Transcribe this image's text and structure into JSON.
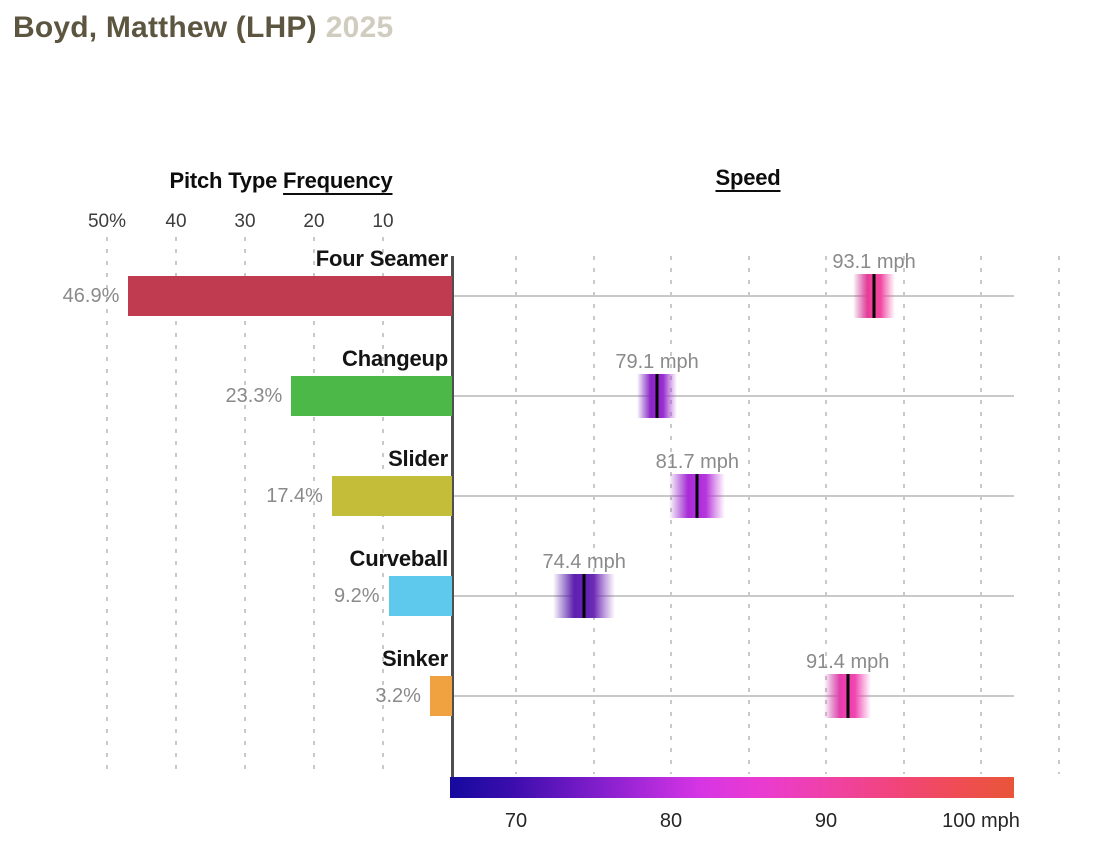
{
  "title": {
    "player": "Boyd, Matthew (LHP)",
    "year": "2025",
    "player_color": "#5c5640",
    "year_color": "#d0ccbf"
  },
  "frequency_chart": {
    "header_prefix": "Pitch Type",
    "header_underlined": "Frequency",
    "ticks": [
      {
        "label": "50%",
        "value": 50
      },
      {
        "label": "40",
        "value": 40
      },
      {
        "label": "30",
        "value": 30
      },
      {
        "label": "20",
        "value": 20
      },
      {
        "label": "10",
        "value": 10
      }
    ],
    "gridline_values": [
      50,
      40,
      30,
      20,
      10
    ]
  },
  "speed_chart": {
    "header": "Speed",
    "ticks": [
      {
        "label": "70",
        "value": 70
      },
      {
        "label": "80",
        "value": 80
      },
      {
        "label": "90",
        "value": 90
      },
      {
        "label": "100 mph",
        "value": 100
      }
    ],
    "gridline_values": [
      70,
      75,
      80,
      85,
      90,
      95,
      100,
      105
    ],
    "colorbar_colors": [
      "#150a9e",
      "#3c0dac",
      "#6f19c4",
      "#a327d8",
      "#d735e4",
      "#ea3bd0",
      "#ef41a8",
      "#f1447f",
      "#f04b58",
      "#e85538"
    ]
  },
  "pitches": [
    {
      "name": "Four Seamer",
      "freq_label": "46.9%",
      "freq_pct": 46.9,
      "bar_color": "#c13b50",
      "speed_label": "93.1 mph",
      "speed_mph": 93.1,
      "speed_color": "#f0419b",
      "spread_mph": 2.7
    },
    {
      "name": "Changeup",
      "freq_label": "23.3%",
      "freq_pct": 23.3,
      "bar_color": "#4cb848",
      "speed_label": "79.1 mph",
      "speed_mph": 79.1,
      "speed_color": "#9127cd",
      "spread_mph": 2.6
    },
    {
      "name": "Slider",
      "freq_label": "17.4%",
      "freq_pct": 17.4,
      "bar_color": "#c3bd3a",
      "speed_label": "81.7 mph",
      "speed_mph": 81.7,
      "speed_color": "#b02edb",
      "spread_mph": 3.6
    },
    {
      "name": "Curveball",
      "freq_label": "9.2%",
      "freq_pct": 9.2,
      "bar_color": "#5ec9ec",
      "speed_label": "74.4 mph",
      "speed_mph": 74.4,
      "speed_color": "#6223b2",
      "spread_mph": 4.0
    },
    {
      "name": "Sinker",
      "freq_label": "3.2%",
      "freq_pct": 3.2,
      "bar_color": "#f0a241",
      "speed_label": "91.4 mph",
      "speed_mph": 91.4,
      "speed_color": "#ee3fae",
      "spread_mph": 3.0
    }
  ],
  "chart_data": [
    {
      "type": "bar",
      "orientation": "horizontal",
      "title": "Pitch Type Frequency",
      "categories": [
        "Four Seamer",
        "Changeup",
        "Slider",
        "Curveball",
        "Sinker"
      ],
      "values": [
        46.9,
        23.3,
        17.4,
        9.2,
        3.2
      ],
      "unit": "%",
      "xlabel": "Frequency (%)",
      "axis_ticks": [
        50,
        40,
        30,
        20,
        10
      ],
      "axis_direction": "right-to-left (bars right-aligned to shared axis)",
      "xlim": [
        0,
        55
      ],
      "grid": "vertical dashed",
      "bar_colors": [
        "#c13b50",
        "#4cb848",
        "#c3bd3a",
        "#5ec9ec",
        "#f0a241"
      ]
    },
    {
      "type": "scatter",
      "title": "Speed",
      "categories": [
        "Four Seamer",
        "Changeup",
        "Slider",
        "Curveball",
        "Sinker"
      ],
      "values": [
        93.1,
        79.1,
        81.7,
        74.4,
        91.4
      ],
      "unit": "mph",
      "xlabel": "Speed (mph)",
      "axis_ticks": [
        70,
        80,
        90,
        100
      ],
      "xlim": [
        66,
        102
      ],
      "grid": "vertical dashed + horizontal row lines",
      "marker": "gaussian-fade strip with black mean line, colored by speed colormap",
      "colormap": [
        "#150a9e",
        "#6f19c4",
        "#d735e4",
        "#ef41a8",
        "#e85538"
      ],
      "legend": "horizontal gradient colorbar below chart, 70-100 mph"
    }
  ]
}
